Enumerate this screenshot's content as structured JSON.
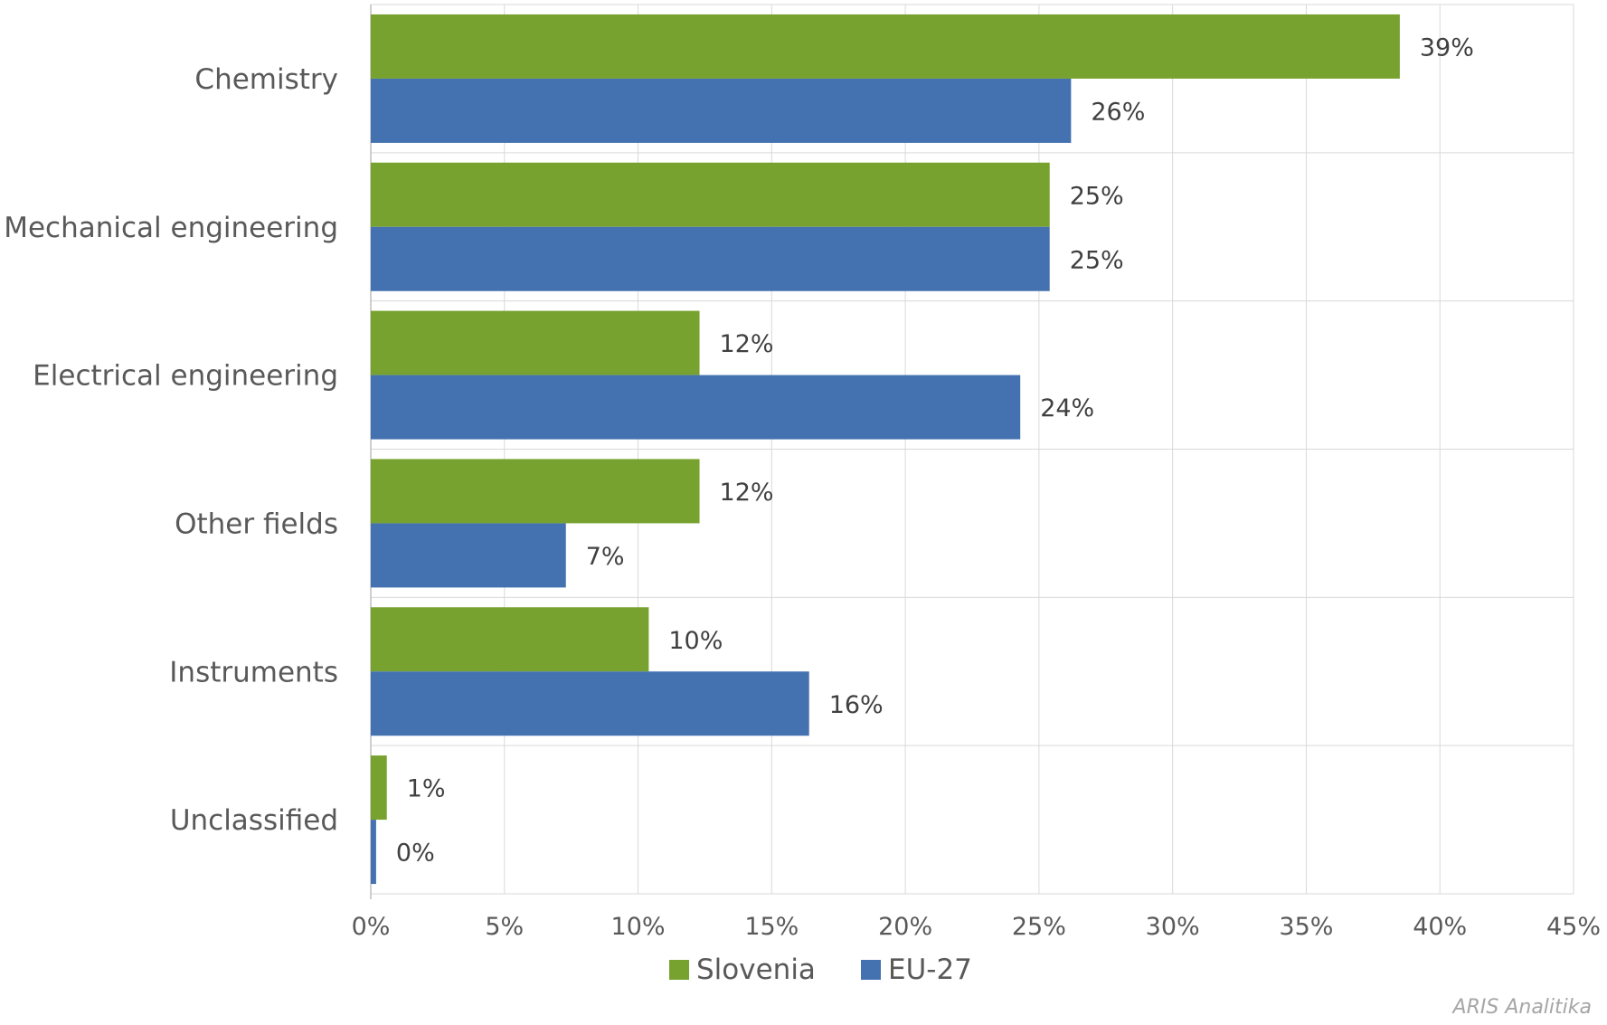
{
  "chart_data": {
    "type": "bar",
    "orientation": "horizontal",
    "categories": [
      "Chemistry",
      "Mechanical engineering",
      "Electrical engineering",
      "Other fields",
      "Instruments",
      "Unclassified"
    ],
    "series": [
      {
        "name": "Slovenia",
        "color": "#78a22f",
        "values": [
          38.5,
          25.4,
          12.3,
          12.3,
          10.4,
          0.6
        ],
        "labels": [
          "39%",
          "25%",
          "12%",
          "12%",
          "10%",
          "1%"
        ]
      },
      {
        "name": "EU-27",
        "color": "#4472b0",
        "values": [
          26.2,
          25.4,
          24.3,
          7.3,
          16.4,
          0.2
        ],
        "labels": [
          "26%",
          "25%",
          "24%",
          "7%",
          "16%",
          "0%"
        ]
      }
    ],
    "xlim": [
      0,
      45
    ],
    "xticks": [
      0,
      5,
      10,
      15,
      20,
      25,
      30,
      35,
      40,
      45
    ],
    "xtick_labels": [
      "0%",
      "5%",
      "10%",
      "15%",
      "20%",
      "25%",
      "30%",
      "35%",
      "40%",
      "45%"
    ],
    "grid": true,
    "legend_position": "bottom"
  },
  "credit": "ARIS Analitika"
}
